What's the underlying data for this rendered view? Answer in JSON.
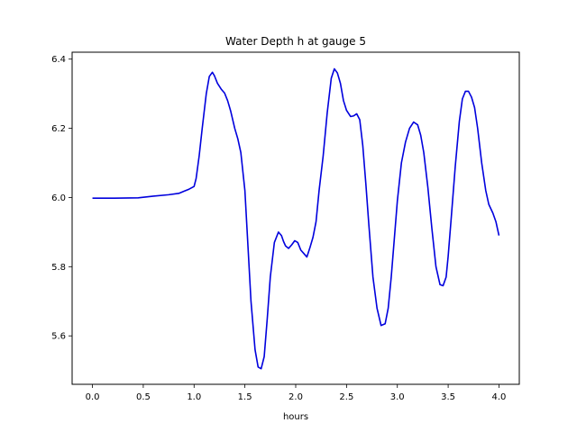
{
  "chart_data": {
    "type": "line",
    "title": "Water Depth h at gauge 5",
    "xlabel": "hours",
    "ylabel": "",
    "xlim": [
      -0.2,
      4.2
    ],
    "ylim": [
      5.46,
      6.42
    ],
    "xticks": [
      0.0,
      0.5,
      1.0,
      1.5,
      2.0,
      2.5,
      3.0,
      3.5,
      4.0
    ],
    "xtick_labels": [
      "0.0",
      "0.5",
      "1.0",
      "1.5",
      "2.0",
      "2.5",
      "3.0",
      "3.5",
      "4.0"
    ],
    "yticks": [
      5.6,
      5.8,
      6.0,
      6.2,
      6.4
    ],
    "ytick_labels": [
      "5.6",
      "5.8",
      "6.0",
      "6.2",
      "6.4"
    ],
    "grid": false,
    "legend": "none",
    "series": [
      {
        "color": "#0000dd",
        "x": [
          0.0,
          0.2,
          0.45,
          0.6,
          0.75,
          0.85,
          0.9,
          0.95,
          1.0,
          1.02,
          1.05,
          1.08,
          1.12,
          1.15,
          1.18,
          1.2,
          1.23,
          1.27,
          1.3,
          1.33,
          1.36,
          1.4,
          1.43,
          1.46,
          1.5,
          1.53,
          1.56,
          1.6,
          1.63,
          1.66,
          1.69,
          1.72,
          1.75,
          1.79,
          1.83,
          1.86,
          1.88,
          1.9,
          1.93,
          1.96,
          1.99,
          2.02,
          2.05,
          2.08,
          2.11,
          2.14,
          2.17,
          2.2,
          2.23,
          2.27,
          2.31,
          2.35,
          2.38,
          2.41,
          2.44,
          2.47,
          2.5,
          2.54,
          2.57,
          2.6,
          2.63,
          2.66,
          2.69,
          2.72,
          2.76,
          2.8,
          2.84,
          2.88,
          2.91,
          2.94,
          2.97,
          3.0,
          3.04,
          3.08,
          3.12,
          3.16,
          3.2,
          3.23,
          3.26,
          3.3,
          3.34,
          3.38,
          3.42,
          3.45,
          3.48,
          3.5,
          3.53,
          3.57,
          3.61,
          3.64,
          3.67,
          3.7,
          3.73,
          3.76,
          3.79,
          3.83,
          3.87,
          3.9,
          3.94,
          3.97,
          4.0
        ],
        "y": [
          5.998,
          5.998,
          5.999,
          6.004,
          6.008,
          6.012,
          6.018,
          6.024,
          6.032,
          6.055,
          6.12,
          6.2,
          6.3,
          6.35,
          6.362,
          6.352,
          6.33,
          6.312,
          6.302,
          6.28,
          6.25,
          6.2,
          6.17,
          6.13,
          6.02,
          5.86,
          5.7,
          5.56,
          5.51,
          5.505,
          5.54,
          5.65,
          5.77,
          5.87,
          5.9,
          5.89,
          5.873,
          5.86,
          5.853,
          5.863,
          5.875,
          5.87,
          5.848,
          5.838,
          5.828,
          5.855,
          5.885,
          5.93,
          6.02,
          6.12,
          6.245,
          6.345,
          6.372,
          6.36,
          6.33,
          6.28,
          6.252,
          6.234,
          6.236,
          6.242,
          6.225,
          6.15,
          6.04,
          5.92,
          5.77,
          5.68,
          5.63,
          5.635,
          5.68,
          5.77,
          5.88,
          5.99,
          6.1,
          6.16,
          6.2,
          6.218,
          6.21,
          6.18,
          6.13,
          6.03,
          5.91,
          5.8,
          5.748,
          5.745,
          5.77,
          5.83,
          5.94,
          6.09,
          6.22,
          6.285,
          6.307,
          6.307,
          6.29,
          6.26,
          6.2,
          6.1,
          6.02,
          5.98,
          5.955,
          5.93,
          5.89
        ]
      }
    ]
  }
}
